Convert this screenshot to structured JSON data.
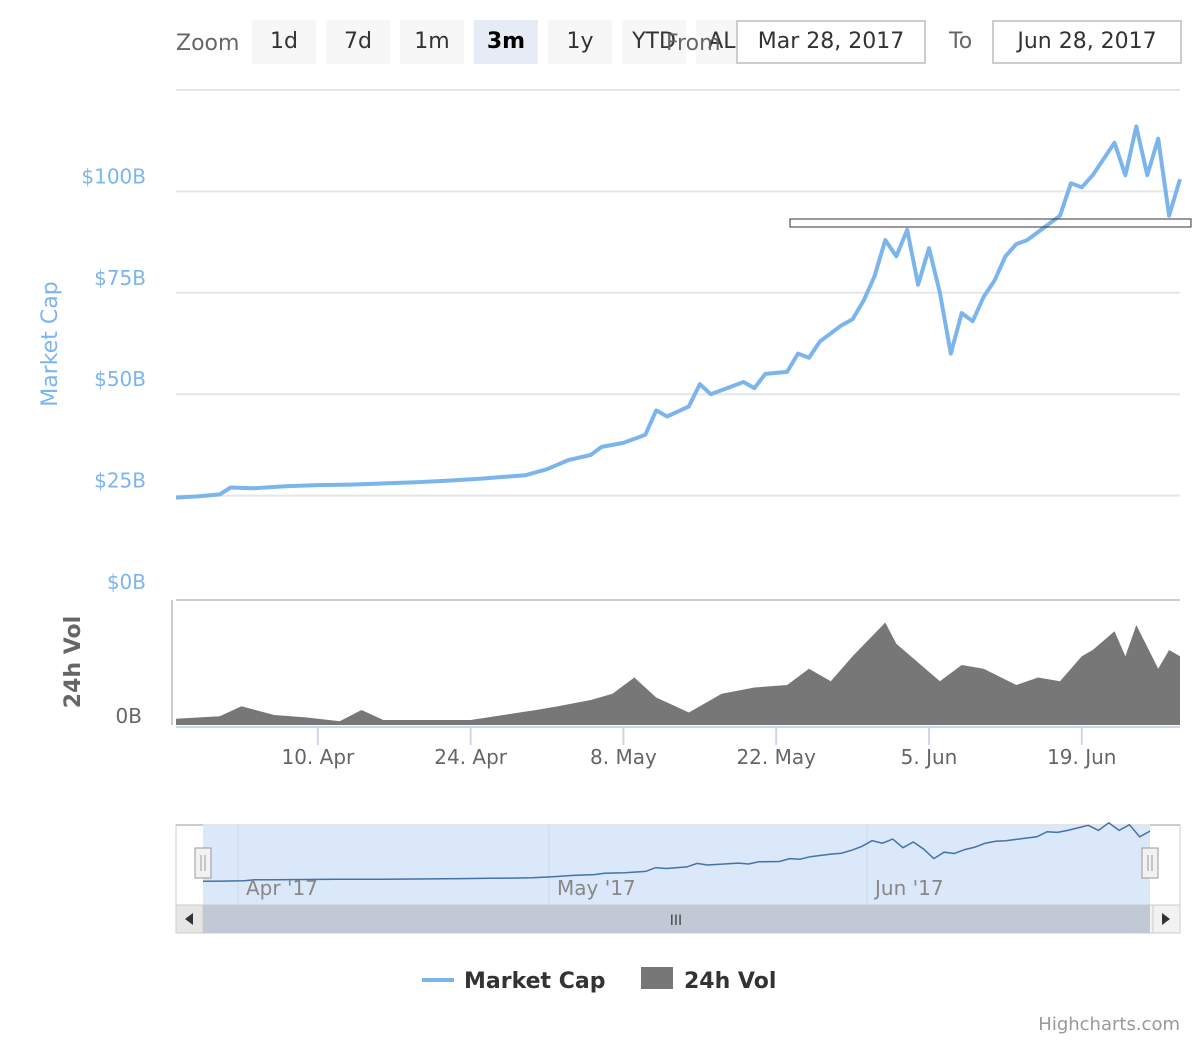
{
  "range_selector": {
    "zoom_label": "Zoom",
    "buttons": [
      "1d",
      "7d",
      "1m",
      "3m",
      "1y",
      "YTD",
      "ALL"
    ],
    "selected": "3m",
    "from_label": "From",
    "from_value": "Mar 28, 2017",
    "to_label": "To",
    "to_value": "Jun 28, 2017"
  },
  "credits": "Highcharts.com",
  "colors": {
    "market_cap": "#7cb5ec",
    "volume": "#777777",
    "navigator_mask": "#d6e5f8",
    "selected_button": "#e6ebf5",
    "button": "#f7f7f7",
    "gridline": "#e6e6e6"
  },
  "chart_data": {
    "type": "line",
    "x_type": "date",
    "date_range": [
      "2017-03-28",
      "2017-06-28"
    ],
    "series": [
      {
        "name": "Market Cap",
        "type": "line",
        "unit": "$B",
        "points": [
          [
            "2017-03-28",
            24.5
          ],
          [
            "2017-03-30",
            24.8
          ],
          [
            "2017-04-01",
            25.3
          ],
          [
            "2017-04-02",
            27.0
          ],
          [
            "2017-04-04",
            26.8
          ],
          [
            "2017-04-07",
            27.3
          ],
          [
            "2017-04-10",
            27.6
          ],
          [
            "2017-04-13",
            27.7
          ],
          [
            "2017-04-16",
            28.0
          ],
          [
            "2017-04-19",
            28.3
          ],
          [
            "2017-04-22",
            28.7
          ],
          [
            "2017-04-25",
            29.2
          ],
          [
            "2017-04-27",
            29.6
          ],
          [
            "2017-04-29",
            30.0
          ],
          [
            "2017-05-01",
            31.5
          ],
          [
            "2017-05-03",
            33.8
          ],
          [
            "2017-05-05",
            35.0
          ],
          [
            "2017-05-06",
            37.0
          ],
          [
            "2017-05-08",
            38.0
          ],
          [
            "2017-05-10",
            40.0
          ],
          [
            "2017-05-11",
            46.0
          ],
          [
            "2017-05-12",
            44.5
          ],
          [
            "2017-05-14",
            47.0
          ],
          [
            "2017-05-15",
            52.5
          ],
          [
            "2017-05-16",
            50.0
          ],
          [
            "2017-05-18",
            52.0
          ],
          [
            "2017-05-19",
            53.0
          ],
          [
            "2017-05-20",
            51.5
          ],
          [
            "2017-05-21",
            55.0
          ],
          [
            "2017-05-23",
            55.5
          ],
          [
            "2017-05-24",
            60.0
          ],
          [
            "2017-05-25",
            59.0
          ],
          [
            "2017-05-26",
            63.0
          ],
          [
            "2017-05-28",
            67.0
          ],
          [
            "2017-05-29",
            68.5
          ],
          [
            "2017-05-30",
            73.0
          ],
          [
            "2017-05-31",
            79.0
          ],
          [
            "2017-06-01",
            88.0
          ],
          [
            "2017-06-02",
            84.0
          ],
          [
            "2017-06-03",
            90.5
          ],
          [
            "2017-06-04",
            77.0
          ],
          [
            "2017-06-05",
            86.0
          ],
          [
            "2017-06-06",
            75.0
          ],
          [
            "2017-06-07",
            60.0
          ],
          [
            "2017-06-08",
            70.0
          ],
          [
            "2017-06-09",
            68.0
          ],
          [
            "2017-06-10",
            74.0
          ],
          [
            "2017-06-11",
            78.0
          ],
          [
            "2017-06-12",
            84.0
          ],
          [
            "2017-06-13",
            87.0
          ],
          [
            "2017-06-14",
            88.0
          ],
          [
            "2017-06-15",
            90.0
          ],
          [
            "2017-06-17",
            94.0
          ],
          [
            "2017-06-18",
            102.0
          ],
          [
            "2017-06-19",
            101.0
          ],
          [
            "2017-06-20",
            104.0
          ],
          [
            "2017-06-21",
            108.0
          ],
          [
            "2017-06-22",
            112.0
          ],
          [
            "2017-06-23",
            104.0
          ],
          [
            "2017-06-24",
            116.0
          ],
          [
            "2017-06-25",
            104.0
          ],
          [
            "2017-06-26",
            113.0
          ],
          [
            "2017-06-27",
            94.0
          ],
          [
            "2017-06-28",
            103.0
          ]
        ]
      },
      {
        "name": "24h Vol",
        "type": "area",
        "unit": "B",
        "points": [
          [
            "2017-03-28",
            0.05
          ],
          [
            "2017-04-01",
            0.07
          ],
          [
            "2017-04-03",
            0.15
          ],
          [
            "2017-04-06",
            0.08
          ],
          [
            "2017-04-09",
            0.06
          ],
          [
            "2017-04-12",
            0.03
          ],
          [
            "2017-04-14",
            0.12
          ],
          [
            "2017-04-16",
            0.04
          ],
          [
            "2017-04-20",
            0.04
          ],
          [
            "2017-04-24",
            0.04
          ],
          [
            "2017-04-27",
            0.08
          ],
          [
            "2017-04-30",
            0.12
          ],
          [
            "2017-05-02",
            0.15
          ],
          [
            "2017-05-05",
            0.2
          ],
          [
            "2017-05-07",
            0.25
          ],
          [
            "2017-05-09",
            0.38
          ],
          [
            "2017-05-11",
            0.22
          ],
          [
            "2017-05-14",
            0.1
          ],
          [
            "2017-05-17",
            0.25
          ],
          [
            "2017-05-20",
            0.3
          ],
          [
            "2017-05-23",
            0.32
          ],
          [
            "2017-05-25",
            0.45
          ],
          [
            "2017-05-27",
            0.35
          ],
          [
            "2017-05-29",
            0.55
          ],
          [
            "2017-06-01",
            0.82
          ],
          [
            "2017-06-02",
            0.65
          ],
          [
            "2017-06-04",
            0.5
          ],
          [
            "2017-06-06",
            0.35
          ],
          [
            "2017-06-08",
            0.48
          ],
          [
            "2017-06-10",
            0.45
          ],
          [
            "2017-06-13",
            0.32
          ],
          [
            "2017-06-15",
            0.38
          ],
          [
            "2017-06-17",
            0.35
          ],
          [
            "2017-06-19",
            0.55
          ],
          [
            "2017-06-20",
            0.6
          ],
          [
            "2017-06-22",
            0.75
          ],
          [
            "2017-06-23",
            0.55
          ],
          [
            "2017-06-24",
            0.8
          ],
          [
            "2017-06-26",
            0.45
          ],
          [
            "2017-06-27",
            0.6
          ],
          [
            "2017-06-28",
            0.55
          ]
        ]
      }
    ],
    "y_axis_market_cap": {
      "title": "Market Cap",
      "ticks": [
        "$0B",
        "$25B",
        "$50B",
        "$75B",
        "$100B"
      ],
      "range": [
        0,
        125
      ]
    },
    "y_axis_volume": {
      "title": "24h Vol",
      "ticks": [
        "0B"
      ],
      "range": [
        0,
        1
      ]
    },
    "x_axis_ticks": [
      "10. Apr",
      "24. Apr",
      "8. May",
      "22. May",
      "5. Jun",
      "19. Jun"
    ],
    "navigator_labels": [
      "Apr '17",
      "May '17",
      "Jun '17"
    ],
    "legend": {
      "position": "bottom-center",
      "items": [
        "Market Cap",
        "24h Vol"
      ]
    },
    "grid": true
  }
}
